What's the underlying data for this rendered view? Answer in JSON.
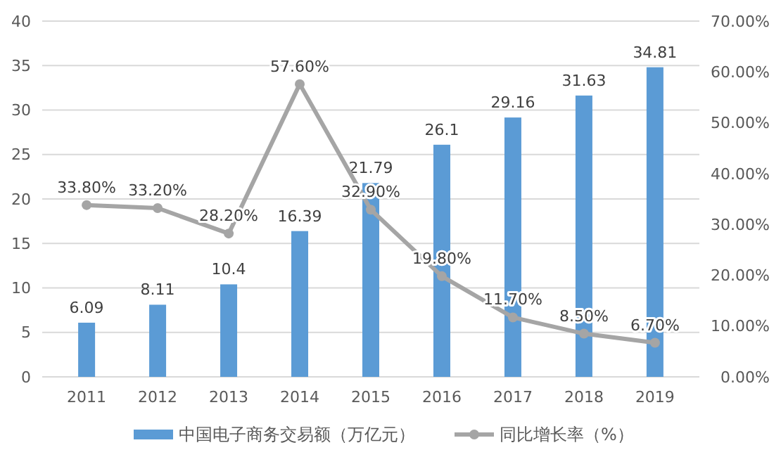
{
  "chart_data": {
    "type": "bar",
    "categories": [
      "2011",
      "2012",
      "2013",
      "2014",
      "2015",
      "2016",
      "2017",
      "2018",
      "2019"
    ],
    "series": [
      {
        "name": "中国电子商务交易额（万亿元）",
        "color": "#5b9bd5",
        "values": [
          6.09,
          8.11,
          10.4,
          16.39,
          21.79,
          26.1,
          29.16,
          31.63,
          34.81
        ],
        "value_labels": [
          "6.09",
          "8.11",
          "10.4",
          "16.39",
          "21.79",
          "26.1",
          "29.16",
          "31.63",
          "34.81"
        ]
      },
      {
        "name": "同比增长率（%）",
        "type": "line",
        "axis": "y2",
        "color": "#a5a5a5",
        "marker": "circle",
        "values": [
          33.8,
          33.2,
          28.2,
          57.6,
          32.9,
          19.8,
          11.7,
          8.5,
          6.7
        ],
        "value_labels": [
          "33.80%",
          "33.20%",
          "28.20%",
          "57.60%",
          "32.90%",
          "19.80%",
          "11.70%",
          "8.50%",
          "6.70%"
        ]
      }
    ],
    "ylim": [
      0,
      40
    ],
    "yticks": [
      0,
      5,
      10,
      15,
      20,
      25,
      30,
      35,
      40
    ],
    "y2lim": [
      0,
      70
    ],
    "y2ticks": [
      {
        "value": 0,
        "label": "0.00%"
      },
      {
        "value": 10,
        "label": "10.00%"
      },
      {
        "value": 20,
        "label": "20.00%"
      },
      {
        "value": 30,
        "label": "30.00%"
      },
      {
        "value": 40,
        "label": "40.00%"
      },
      {
        "value": 50,
        "label": "50.00%"
      },
      {
        "value": 60,
        "label": "60.00%"
      },
      {
        "value": 70,
        "label": "70.00%"
      }
    ],
    "grid": "y",
    "legend": "bottom"
  }
}
